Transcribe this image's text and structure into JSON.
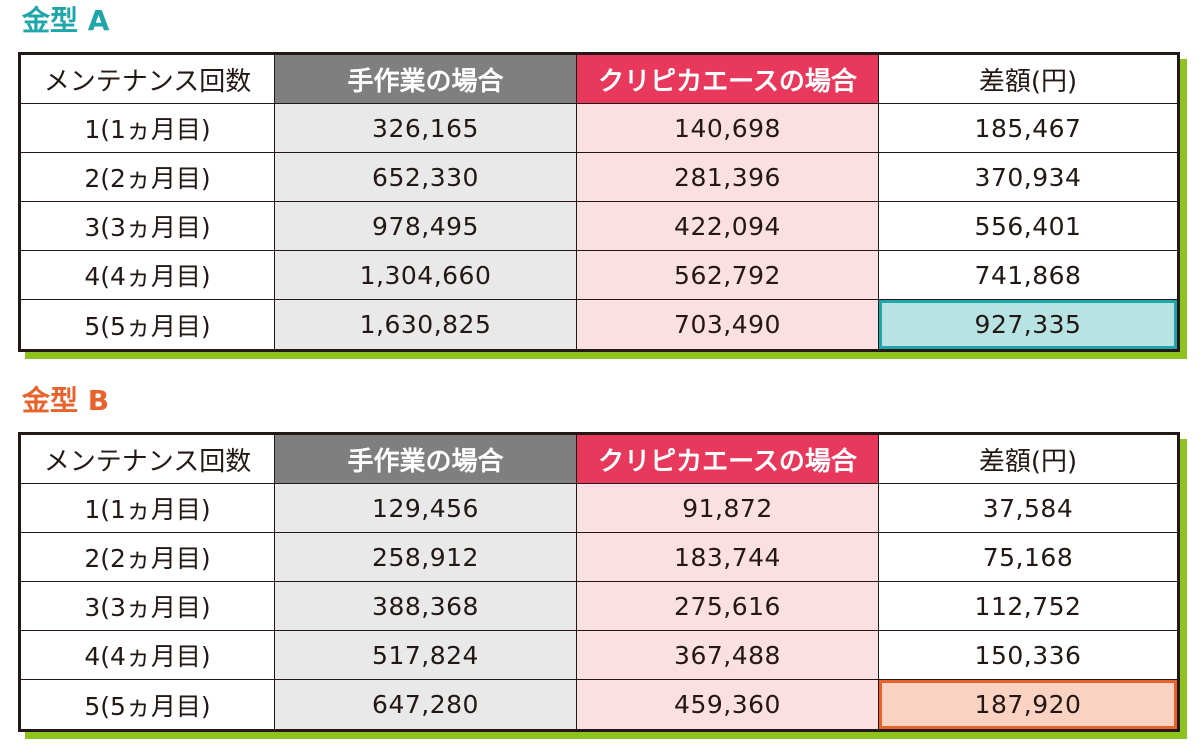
{
  "tables": [
    {
      "title": "金型 A",
      "headers": [
        "メンテナンス回数",
        "手作業の場合",
        "クリピカエースの場合",
        "差額(円)"
      ],
      "rows": [
        [
          "1(1ヵ月目)",
          "326,165",
          "140,698",
          "185,467"
        ],
        [
          "2(2ヵ月目)",
          "652,330",
          "281,396",
          "370,934"
        ],
        [
          "3(3ヵ月目)",
          "978,495",
          "422,094",
          "556,401"
        ],
        [
          "4(4ヵ月目)",
          "1,304,660",
          "562,792",
          "741,868"
        ],
        [
          "5(5ヵ月目)",
          "1,630,825",
          "703,490",
          "927,335"
        ]
      ],
      "accent_color": "#1fa6aa",
      "highlight_fill": "#b7e3e2"
    },
    {
      "title": "金型 B",
      "headers": [
        "メンテナンス回数",
        "手作業の場合",
        "クリピカエースの場合",
        "差額(円)"
      ],
      "rows": [
        [
          "1(1ヵ月目)",
          "129,456",
          "91,872",
          "37,584"
        ],
        [
          "2(2ヵ月目)",
          "258,912",
          "183,744",
          "75,168"
        ],
        [
          "3(3ヵ月目)",
          "388,368",
          "275,616",
          "112,752"
        ],
        [
          "4(4ヵ月目)",
          "517,824",
          "367,488",
          "150,336"
        ],
        [
          "5(5ヵ月目)",
          "647,280",
          "459,360",
          "187,920"
        ]
      ],
      "accent_color": "#e8632b",
      "highlight_fill": "#f9d2c1"
    }
  ],
  "colors": {
    "manual_header": "#7f7f7f",
    "clipi_header": "#e8385c",
    "manual_column": "#e9e9e9",
    "clipi_column": "#fbe0e3",
    "shadow": "#8dc21f",
    "border": "#231815"
  }
}
